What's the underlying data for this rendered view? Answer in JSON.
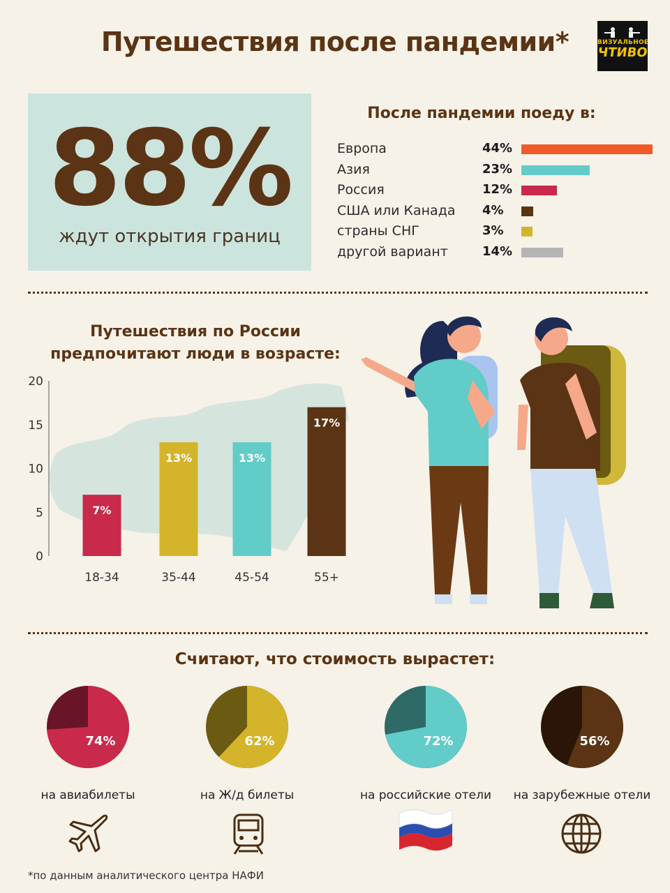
{
  "title": "Путешествия после пандемии*",
  "logo": {
    "line1": "ВИЗУАЛЬНОЕ",
    "line2": "ЧТИВО"
  },
  "headline": {
    "value": "88%",
    "caption": "ждут открытия границ"
  },
  "destinations": {
    "title": "После пандемии поеду в:",
    "items": [
      {
        "label": "Европа",
        "pct_text": "44%",
        "value": 44,
        "color": "#f05a28"
      },
      {
        "label": "Азия",
        "pct_text": "23%",
        "value": 23,
        "color": "#62ccc8"
      },
      {
        "label": "Россия",
        "pct_text": "12%",
        "value": 12,
        "color": "#c9294a"
      },
      {
        "label": "США или Канада",
        "pct_text": "4%",
        "value": 4,
        "color": "#5a3414"
      },
      {
        "label": "страны СНГ",
        "pct_text": "3%",
        "value": 3,
        "color": "#d4b42a"
      },
      {
        "label": "другой вариант",
        "pct_text": "14%",
        "value": 14,
        "color": "#b5b5b5"
      }
    ]
  },
  "age_section": {
    "title_line1": "Путешествия по России",
    "title_line2": "предпочитают люди в возрасте:"
  },
  "chart_data": {
    "type": "bar",
    "title": "Путешествия по России предпочитают люди в возрасте:",
    "categories": [
      "18-34",
      "35-44",
      "45-54",
      "55+"
    ],
    "values": [
      7,
      13,
      13,
      17
    ],
    "data_labels": [
      "7%",
      "13%",
      "13%",
      "17%"
    ],
    "colors": [
      "#c9294a",
      "#d4b42a",
      "#62ccc8",
      "#5a3414"
    ],
    "ylim": [
      0,
      20
    ],
    "yticks": [
      0,
      5,
      10,
      15,
      20
    ],
    "grid": false
  },
  "price_rise": {
    "title": "Считают, что стоимость вырастет:",
    "items": [
      {
        "label": "на авиабилеты",
        "pct_text": "74%",
        "value": 74,
        "main_color": "#c9294a",
        "rest_color": "#6a1428",
        "icon": "airplane-icon"
      },
      {
        "label": "на Ж/д билеты",
        "pct_text": "62%",
        "value": 62,
        "main_color": "#d4b42a",
        "rest_color": "#6b5a12",
        "icon": "train-icon"
      },
      {
        "label": "на российские отели",
        "pct_text": "72%",
        "value": 72,
        "main_color": "#62ccc8",
        "rest_color": "#2f6a66",
        "icon": "russian-flag-icon"
      },
      {
        "label": "на зарубежные отели",
        "pct_text": "56%",
        "value": 56,
        "main_color": "#5a3414",
        "rest_color": "#2a1508",
        "icon": "globe-icon"
      }
    ]
  },
  "footnote": "*по данным аналитического центра НАФИ"
}
